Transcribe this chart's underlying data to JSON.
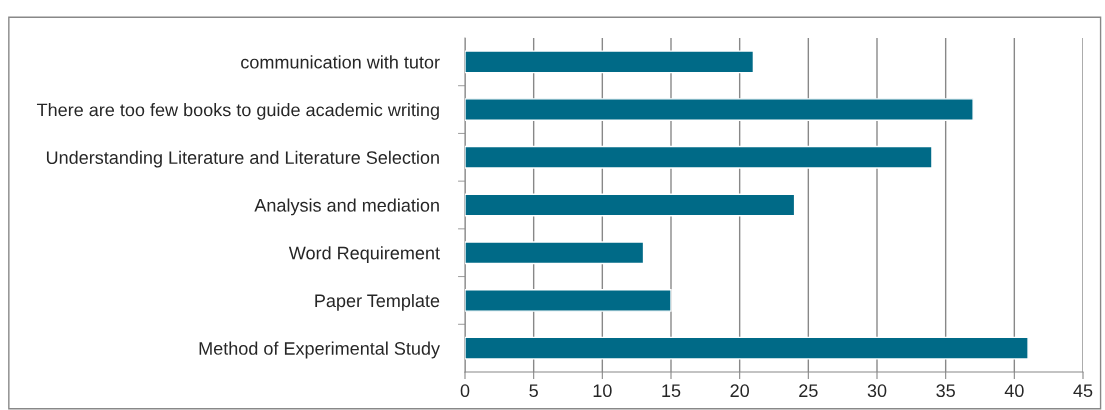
{
  "chart_data": {
    "type": "bar",
    "orientation": "horizontal",
    "categories": [
      "communication with tutor",
      "There are too few books to guide academic writing",
      "Understanding Literature and Literature Selection",
      "Analysis and mediation",
      "Word Requirement",
      "Paper Template",
      "Method of Experimental Study"
    ],
    "values": [
      21,
      37,
      34,
      24,
      13,
      15,
      41
    ],
    "color": "#006a87",
    "xlim": [
      0,
      45
    ],
    "xticks": [
      0,
      5,
      10,
      15,
      20,
      25,
      30,
      35,
      40,
      45
    ],
    "grid": "x",
    "legend": false
  }
}
